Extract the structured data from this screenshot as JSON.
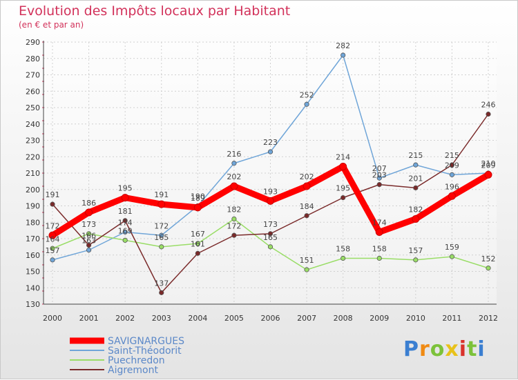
{
  "title": "Evolution des Impôts locaux par Habitant",
  "subtitle": "(en € et par an)",
  "brand": "Proxiti",
  "chart_data": {
    "type": "line",
    "title": "Evolution des Impôts locaux par Habitant",
    "subtitle": "(en € et par an)",
    "xlabel": "",
    "ylabel": "",
    "x": [
      "2000",
      "2001",
      "2002",
      "2003",
      "2004",
      "2005",
      "2006",
      "2007",
      "2008",
      "2009",
      "2010",
      "2011",
      "2012"
    ],
    "ylim": [
      130,
      290
    ],
    "yticks": [
      130,
      140,
      150,
      160,
      170,
      180,
      190,
      200,
      210,
      220,
      230,
      240,
      250,
      260,
      270,
      280,
      290
    ],
    "grid": true,
    "legend_position": "bottom-left",
    "series": [
      {
        "name": "SAVIGNARGUES",
        "color": "#ff0000",
        "values": [
          172,
          186,
          195,
          191,
          189,
          202,
          193,
          202,
          214,
          174,
          182,
          196,
          209
        ]
      },
      {
        "name": "Saint-Théodorit",
        "color": "#6fa5d8",
        "values": [
          157,
          163,
          174,
          172,
          190,
          216,
          223,
          252,
          282,
          207,
          215,
          209,
          210
        ]
      },
      {
        "name": "Puechredon",
        "color": "#99dd66",
        "values": [
          164,
          173,
          169,
          165,
          167,
          182,
          165,
          151,
          158,
          158,
          157,
          159,
          152
        ]
      },
      {
        "name": "Aigremont",
        "color": "#7a2a2a",
        "values": [
          191,
          166,
          181,
          137,
          161,
          172,
          173,
          184,
          195,
          203,
          201,
          215,
          246
        ]
      }
    ]
  }
}
